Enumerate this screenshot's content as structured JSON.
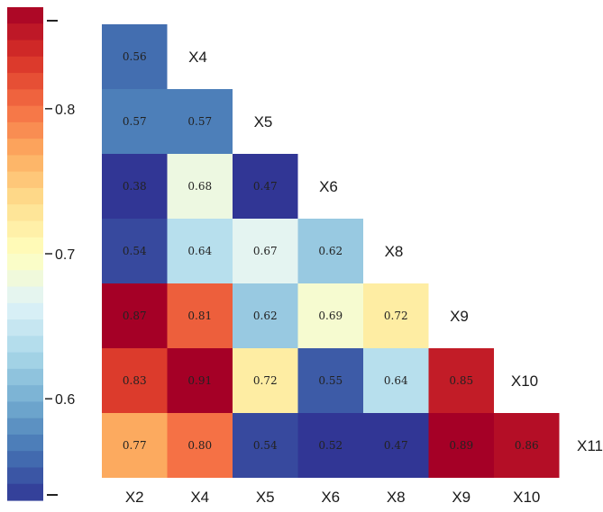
{
  "chart_data": {
    "type": "heatmap",
    "layout": "lower-triangular correlation matrix",
    "x_labels": [
      "X2",
      "X4",
      "X5",
      "X6",
      "X8",
      "X9",
      "X10"
    ],
    "row_labels": [
      "X4",
      "X5",
      "X6",
      "X8",
      "X9",
      "X10",
      "X11"
    ],
    "values": [
      [
        0.56
      ],
      [
        0.57,
        0.57
      ],
      [
        0.38,
        0.68,
        0.47
      ],
      [
        0.54,
        0.64,
        0.67,
        0.62
      ],
      [
        0.87,
        0.81,
        0.62,
        0.69,
        0.72
      ],
      [
        0.83,
        0.91,
        0.72,
        0.55,
        0.64,
        0.85
      ],
      [
        0.77,
        0.8,
        0.54,
        0.52,
        0.47,
        0.89,
        0.86
      ]
    ],
    "value_format": "2 decimals",
    "colorbar": {
      "min": 0.53,
      "max": 0.87,
      "ticks": [
        0.6,
        0.7,
        0.8
      ],
      "tick_labels": [
        "0.6",
        "0.7",
        "0.8"
      ],
      "colormap": "RdYlBu_r",
      "colormap_stops": [
        "#313695",
        "#4575b4",
        "#74add1",
        "#abd9e9",
        "#e0f3f8",
        "#ffffbf",
        "#fee090",
        "#fdae61",
        "#f46d43",
        "#d73027",
        "#a50026"
      ]
    },
    "title": "",
    "xlabel": "",
    "ylabel": ""
  }
}
